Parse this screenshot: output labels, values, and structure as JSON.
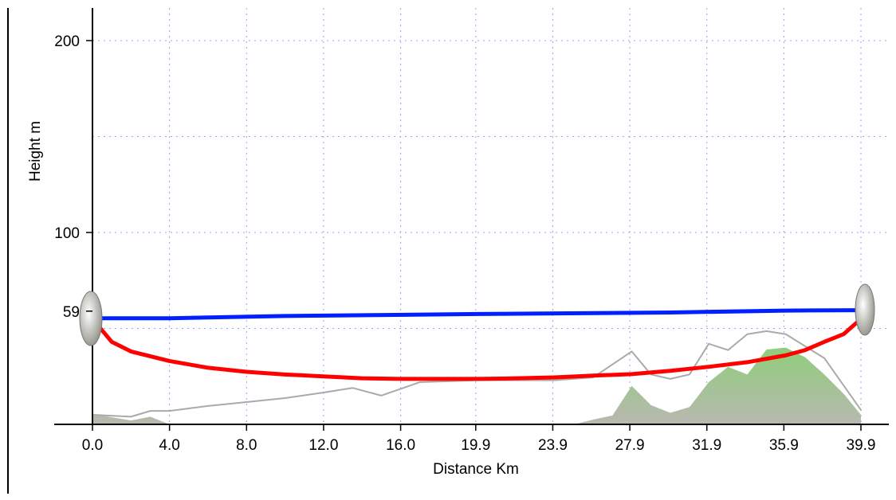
{
  "chart_data": {
    "type": "line",
    "ylabel": "Height m",
    "xlabel": "Distance Km",
    "xlim": [
      0,
      39.9
    ],
    "ylim": [
      0,
      217
    ],
    "xticks": [
      {
        "value": 0,
        "label": "0.0"
      },
      {
        "value": 4,
        "label": "4.0"
      },
      {
        "value": 8,
        "label": "8.0"
      },
      {
        "value": 12,
        "label": "12.0"
      },
      {
        "value": 16,
        "label": "16.0"
      },
      19.9,
      23.9,
      27.9,
      31.9,
      35.9,
      39.9
    ],
    "yticks": [
      59,
      100,
      200
    ],
    "ygrid": [
      50,
      100,
      150,
      200
    ],
    "grid": true,
    "series": [
      {
        "kind": "area",
        "color": "#8fce7a",
        "x": [
          0,
          2,
          3,
          4,
          8,
          12,
          16,
          20,
          24,
          25,
          26,
          27,
          28,
          29,
          30,
          31,
          32,
          33,
          34,
          35,
          36,
          37,
          38,
          39,
          39.9
        ],
        "values": [
          5.4,
          2,
          4,
          0,
          0,
          0,
          0,
          0,
          0,
          0,
          2.5,
          4.6,
          20,
          10,
          6,
          9,
          22,
          30,
          26,
          39,
          40,
          35,
          26,
          16,
          5
        ]
      },
      {
        "kind": "line",
        "color": "#aaaaaa",
        "x": [
          0,
          2,
          3,
          4,
          6,
          8,
          10,
          12,
          13.5,
          15,
          17,
          20,
          24,
          26,
          28,
          29,
          30,
          31,
          32,
          33,
          34,
          35,
          36,
          38,
          39.9
        ],
        "values": [
          5,
          4,
          7,
          7,
          9.6,
          11.6,
          13.7,
          16.6,
          19,
          15,
          22,
          23,
          23,
          24.5,
          38,
          26,
          23.7,
          26,
          42,
          38.7,
          47,
          48.6,
          47,
          34.5,
          7.5
        ]
      },
      {
        "kind": "line",
        "color": "#ff0000",
        "x": [
          0,
          1,
          2,
          4,
          6,
          8,
          10,
          12,
          14,
          16,
          18,
          20,
          22,
          24,
          26,
          28,
          30,
          32,
          34,
          36,
          37,
          38,
          39,
          39.9
        ],
        "values": [
          55,
          43,
          38,
          33,
          29.5,
          27.4,
          26,
          25,
          24,
          23.7,
          23.7,
          23.7,
          24,
          24.5,
          25.4,
          26.2,
          27.9,
          30,
          32.4,
          36,
          38.7,
          43,
          47,
          55
        ]
      },
      {
        "kind": "line",
        "color": "#0020ff",
        "x": [
          0,
          4,
          10,
          20,
          30,
          36,
          39.9
        ],
        "values": [
          55.3,
          55.3,
          56.5,
          57.5,
          58.3,
          59.3,
          59.5
        ]
      }
    ]
  }
}
